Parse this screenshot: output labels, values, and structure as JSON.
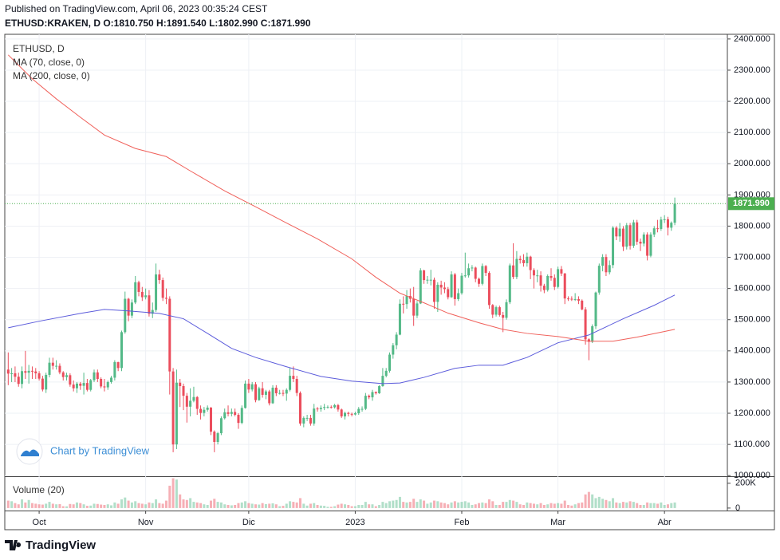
{
  "chart_data": {
    "type": "candlestick",
    "note": "Published on TradingView.com, April 06, 2023 00:35:24 CEST",
    "header": "ETHUSD:KRAKEN, D O:1810.750 H:1891.540 L:1802.990 C:1871.990",
    "symbol": "ETHUSD, D",
    "watermark": "Chart by TradingView",
    "brand": "TradingView",
    "up_color": "#53b987",
    "down_color": "#eb4d5c",
    "grid": true,
    "xlim": [
      -1,
      209.3
    ],
    "xticks": [
      {
        "value": 9,
        "label": "Oct"
      },
      {
        "value": 40,
        "label": "Nov"
      },
      {
        "value": 70,
        "label": "Dic"
      },
      {
        "value": 101,
        "label": "2023"
      },
      {
        "value": 132,
        "label": "Feb"
      },
      {
        "value": 160,
        "label": "Mar"
      },
      {
        "value": 191,
        "label": "Abr"
      }
    ],
    "ylim": [
      998,
      2415
    ],
    "yticks": [
      {
        "value": 1000,
        "label": "1000.000"
      },
      {
        "value": 1100,
        "label": "1100.000"
      },
      {
        "value": 1200,
        "label": "1200.000"
      },
      {
        "value": 1300,
        "label": "1300.000"
      },
      {
        "value": 1400,
        "label": "1400.000"
      },
      {
        "value": 1500,
        "label": "1500.000"
      },
      {
        "value": 1600,
        "label": "1600.000"
      },
      {
        "value": 1700,
        "label": "1700.000"
      },
      {
        "value": 1800,
        "label": "1800.000"
      },
      {
        "value": 1900,
        "label": "1900.000"
      },
      {
        "value": 2000,
        "label": "2000.000"
      },
      {
        "value": 2100,
        "label": "2100.000"
      },
      {
        "value": 2200,
        "label": "2200.000"
      },
      {
        "value": 2300,
        "label": "2300.000"
      },
      {
        "value": 2400,
        "label": "2400.000"
      }
    ],
    "last_label": "1871.990",
    "last_color": "#4caf50",
    "open": [
      1340,
      1327,
      1328,
      1317,
      1294,
      1335,
      1330,
      1336,
      1334,
      1328,
      1311,
      1276,
      1323,
      1362,
      1352,
      1352,
      1331,
      1316,
      1322,
      1292,
      1280,
      1295,
      1288,
      1297,
      1275,
      1306,
      1331,
      1310,
      1286,
      1283,
      1300,
      1314,
      1364,
      1345,
      1460,
      1567,
      1513,
      1555,
      1620,
      1589,
      1572,
      1578,
      1519,
      1531,
      1645,
      1627,
      1570,
      1567,
      1334,
      1100,
      1298,
      1287,
      1256,
      1221,
      1240,
      1252,
      1214,
      1201,
      1211,
      1218,
      1141,
      1108,
      1136,
      1184,
      1203,
      1198,
      1204,
      1195,
      1169,
      1217,
      1295,
      1276,
      1293,
      1242,
      1280,
      1259,
      1270,
      1232,
      1282,
      1264,
      1265,
      1263,
      1275,
      1320,
      1310,
      1265,
      1167,
      1185,
      1185,
      1167,
      1215,
      1213,
      1217,
      1220,
      1220,
      1219,
      1226,
      1212,
      1190,
      1201,
      1198,
      1196,
      1200,
      1214,
      1214,
      1256,
      1251,
      1268,
      1264,
      1287,
      1320,
      1336,
      1388,
      1418,
      1452,
      1551,
      1550,
      1576,
      1567,
      1513,
      1552,
      1658,
      1627,
      1628,
      1628,
      1557,
      1612,
      1603,
      1598,
      1572,
      1645,
      1566,
      1585,
      1641,
      1642,
      1665,
      1667,
      1631,
      1615,
      1672,
      1650,
      1547,
      1516,
      1540,
      1515,
      1506,
      1556,
      1674,
      1637,
      1695,
      1691,
      1681,
      1702,
      1659,
      1642,
      1642,
      1609,
      1595,
      1640,
      1634,
      1605,
      1662,
      1648,
      1568,
      1567,
      1565,
      1566,
      1561,
      1533,
      1437,
      1429,
      1479,
      1587,
      1673,
      1701,
      1652,
      1675,
      1795,
      1767,
      1792,
      1734,
      1803,
      1737,
      1812,
      1750,
      1744,
      1773,
      1705,
      1773,
      1793,
      1791,
      1821,
      1822,
      1795,
      1810.75
    ],
    "high": [
      1395,
      1345,
      1350,
      1330,
      1350,
      1400,
      1355,
      1350,
      1345,
      1335,
      1320,
      1330,
      1378,
      1378,
      1370,
      1360,
      1335,
      1330,
      1328,
      1305,
      1300,
      1300,
      1330,
      1310,
      1310,
      1340,
      1340,
      1315,
      1310,
      1305,
      1320,
      1370,
      1365,
      1465,
      1590,
      1570,
      1565,
      1640,
      1625,
      1605,
      1600,
      1595,
      1555,
      1680,
      1660,
      1635,
      1600,
      1575,
      1345,
      1340,
      1310,
      1295,
      1265,
      1280,
      1285,
      1255,
      1225,
      1220,
      1225,
      1220,
      1145,
      1140,
      1190,
      1215,
      1225,
      1215,
      1215,
      1200,
      1225,
      1305,
      1310,
      1300,
      1300,
      1285,
      1300,
      1275,
      1275,
      1290,
      1290,
      1275,
      1275,
      1280,
      1345,
      1350,
      1320,
      1270,
      1190,
      1195,
      1195,
      1230,
      1220,
      1225,
      1230,
      1225,
      1225,
      1230,
      1230,
      1215,
      1205,
      1205,
      1202,
      1205,
      1220,
      1222,
      1265,
      1260,
      1275,
      1270,
      1290,
      1345,
      1345,
      1395,
      1425,
      1460,
      1565,
      1575,
      1595,
      1600,
      1605,
      1560,
      1665,
      1660,
      1640,
      1660,
      1635,
      1620,
      1625,
      1620,
      1605,
      1655,
      1650,
      1600,
      1650,
      1715,
      1680,
      1675,
      1670,
      1635,
      1680,
      1675,
      1655,
      1550,
      1545,
      1545,
      1525,
      1565,
      1680,
      1745,
      1720,
      1705,
      1710,
      1715,
      1705,
      1665,
      1660,
      1655,
      1615,
      1645,
      1665,
      1645,
      1670,
      1672,
      1650,
      1575,
      1575,
      1585,
      1575,
      1565,
      1540,
      1440,
      1485,
      1590,
      1680,
      1710,
      1710,
      1690,
      1800,
      1800,
      1810,
      1800,
      1810,
      1810,
      1820,
      1820,
      1760,
      1780,
      1780,
      1780,
      1800,
      1820,
      1830,
      1835,
      1830,
      1815,
      1891.54
    ],
    "low": [
      1290,
      1300,
      1300,
      1285,
      1280,
      1310,
      1295,
      1310,
      1310,
      1305,
      1270,
      1265,
      1315,
      1340,
      1340,
      1325,
      1305,
      1305,
      1285,
      1270,
      1265,
      1275,
      1260,
      1270,
      1270,
      1300,
      1300,
      1280,
      1270,
      1275,
      1295,
      1305,
      1335,
      1335,
      1455,
      1495,
      1505,
      1550,
      1575,
      1560,
      1565,
      1510,
      1505,
      1525,
      1615,
      1560,
      1550,
      1260,
      1075,
      1085,
      1220,
      1210,
      1170,
      1190,
      1235,
      1195,
      1180,
      1190,
      1205,
      1130,
      1075,
      1100,
      1130,
      1180,
      1190,
      1190,
      1190,
      1150,
      1165,
      1215,
      1265,
      1270,
      1235,
      1240,
      1250,
      1245,
      1225,
      1230,
      1255,
      1260,
      1255,
      1240,
      1270,
      1300,
      1255,
      1160,
      1155,
      1175,
      1160,
      1160,
      1205,
      1205,
      1210,
      1215,
      1215,
      1215,
      1205,
      1185,
      1180,
      1190,
      1190,
      1193,
      1195,
      1205,
      1210,
      1245,
      1240,
      1260,
      1262,
      1285,
      1315,
      1330,
      1375,
      1405,
      1450,
      1520,
      1535,
      1555,
      1480,
      1505,
      1550,
      1615,
      1615,
      1610,
      1535,
      1525,
      1580,
      1585,
      1565,
      1570,
      1545,
      1560,
      1580,
      1635,
      1635,
      1655,
      1620,
      1605,
      1610,
      1640,
      1535,
      1505,
      1510,
      1510,
      1460,
      1500,
      1550,
      1630,
      1630,
      1680,
      1670,
      1670,
      1630,
      1600,
      1620,
      1590,
      1585,
      1590,
      1625,
      1595,
      1600,
      1640,
      1550,
      1560,
      1560,
      1560,
      1550,
      1530,
      1420,
      1370,
      1425,
      1470,
      1580,
      1655,
      1640,
      1645,
      1665,
      1755,
      1750,
      1720,
      1725,
      1725,
      1730,
      1740,
      1720,
      1735,
      1690,
      1700,
      1765,
      1780,
      1785,
      1810,
      1770,
      1785,
      1802.99
    ],
    "close": [
      1327,
      1328,
      1317,
      1294,
      1335,
      1330,
      1336,
      1334,
      1328,
      1311,
      1276,
      1323,
      1362,
      1352,
      1352,
      1331,
      1316,
      1322,
      1292,
      1280,
      1295,
      1288,
      1297,
      1275,
      1306,
      1331,
      1310,
      1286,
      1283,
      1300,
      1314,
      1364,
      1345,
      1460,
      1567,
      1513,
      1555,
      1620,
      1589,
      1572,
      1578,
      1519,
      1531,
      1645,
      1627,
      1570,
      1567,
      1334,
      1100,
      1298,
      1287,
      1256,
      1221,
      1240,
      1252,
      1214,
      1201,
      1211,
      1218,
      1141,
      1108,
      1136,
      1184,
      1203,
      1198,
      1204,
      1195,
      1169,
      1217,
      1295,
      1276,
      1293,
      1242,
      1280,
      1259,
      1270,
      1232,
      1282,
      1264,
      1265,
      1263,
      1275,
      1320,
      1310,
      1265,
      1167,
      1185,
      1185,
      1167,
      1215,
      1213,
      1217,
      1220,
      1220,
      1219,
      1226,
      1212,
      1190,
      1201,
      1198,
      1196,
      1200,
      1214,
      1214,
      1256,
      1251,
      1268,
      1264,
      1287,
      1320,
      1336,
      1388,
      1418,
      1452,
      1551,
      1550,
      1576,
      1567,
      1513,
      1552,
      1658,
      1627,
      1628,
      1628,
      1557,
      1612,
      1603,
      1598,
      1572,
      1645,
      1566,
      1585,
      1641,
      1642,
      1665,
      1667,
      1631,
      1615,
      1672,
      1650,
      1547,
      1516,
      1540,
      1515,
      1506,
      1556,
      1674,
      1637,
      1695,
      1691,
      1681,
      1702,
      1659,
      1642,
      1642,
      1609,
      1595,
      1640,
      1634,
      1605,
      1662,
      1648,
      1568,
      1567,
      1565,
      1566,
      1561,
      1533,
      1437,
      1429,
      1479,
      1587,
      1673,
      1701,
      1652,
      1675,
      1795,
      1767,
      1792,
      1734,
      1803,
      1737,
      1812,
      1750,
      1744,
      1773,
      1705,
      1773,
      1793,
      1791,
      1821,
      1822,
      1795,
      1810.75,
      1871.99
    ],
    "series": [
      {
        "name": "MA (70, close, 0)",
        "color": "#5b5bdb",
        "x": [
          0,
          9,
          21,
          28,
          35,
          44,
          51,
          58,
          65,
          72,
          81,
          91,
          100,
          109,
          114,
          121,
          130,
          137,
          144,
          151,
          160,
          169,
          179,
          188,
          194
        ],
        "values": [
          1474,
          1495,
          1520,
          1533,
          1528,
          1520,
          1503,
          1456,
          1408,
          1379,
          1349,
          1318,
          1303,
          1295,
          1297,
          1315,
          1344,
          1354,
          1354,
          1379,
          1426,
          1451,
          1503,
          1546,
          1579
        ]
      },
      {
        "name": "MA (200, close, 0)",
        "color": "#f0605a",
        "x": [
          0,
          7,
          14,
          21,
          28,
          37,
          46,
          53,
          63,
          72,
          81,
          90,
          100,
          107,
          114,
          121,
          128,
          137,
          144,
          151,
          160,
          169,
          176,
          183,
          194
        ],
        "values": [
          2349,
          2272,
          2208,
          2149,
          2092,
          2049,
          2023,
          1977,
          1913,
          1862,
          1810,
          1759,
          1695,
          1636,
          1585,
          1554,
          1521,
          1490,
          1469,
          1456,
          1446,
          1431,
          1431,
          1444,
          1469
        ]
      }
    ],
    "volume": {
      "name": "Volume (20)",
      "ylim": [
        -20000,
        250000
      ],
      "yticks": [
        0,
        {
          "value": 200000,
          "label": "200K"
        }
      ],
      "values": [
        60000,
        55000,
        40000,
        30000,
        70000,
        45000,
        65000,
        40000,
        35000,
        30000,
        28000,
        35000,
        50000,
        35000,
        30000,
        32000,
        15000,
        14000,
        33000,
        30000,
        45000,
        40000,
        30000,
        18000,
        20000,
        35000,
        33000,
        28000,
        25000,
        30000,
        22000,
        45000,
        35000,
        70000,
        85000,
        60000,
        45000,
        55000,
        40000,
        35000,
        30000,
        45000,
        40000,
        70000,
        40000,
        35000,
        60000,
        180000,
        240000,
        230000,
        110000,
        70000,
        65000,
        80000,
        50000,
        45000,
        40000,
        30000,
        25000,
        60000,
        75000,
        50000,
        45000,
        30000,
        25000,
        22000,
        25000,
        40000,
        45000,
        55000,
        40000,
        35000,
        30000,
        28000,
        40000,
        32000,
        35000,
        38000,
        30000,
        15000,
        18000,
        35000,
        55000,
        50000,
        45000,
        80000,
        35000,
        20000,
        35000,
        40000,
        25000,
        20000,
        18000,
        10000,
        10000,
        15000,
        28000,
        35000,
        30000,
        25000,
        15000,
        15000,
        25000,
        25000,
        50000,
        30000,
        30000,
        15000,
        25000,
        50000,
        40000,
        55000,
        60000,
        65000,
        90000,
        50000,
        45000,
        50000,
        75000,
        50000,
        70000,
        60000,
        35000,
        45000,
        60000,
        55000,
        45000,
        40000,
        30000,
        45000,
        55000,
        45000,
        50000,
        55000,
        45000,
        25000,
        30000,
        40000,
        45000,
        40000,
        70000,
        55000,
        25000,
        25000,
        50000,
        50000,
        65000,
        60000,
        50000,
        30000,
        25000,
        45000,
        40000,
        35000,
        30000,
        40000,
        25000,
        30000,
        40000,
        35000,
        40000,
        35000,
        60000,
        25000,
        20000,
        30000,
        40000,
        45000,
        110000,
        130000,
        110000,
        80000,
        90000,
        75000,
        65000,
        55000,
        80000,
        45000,
        40000,
        50000,
        45000,
        55000,
        50000,
        40000,
        25000,
        25000,
        45000,
        40000,
        40000,
        35000,
        45000,
        25000,
        30000,
        40000,
        45000
      ]
    }
  }
}
